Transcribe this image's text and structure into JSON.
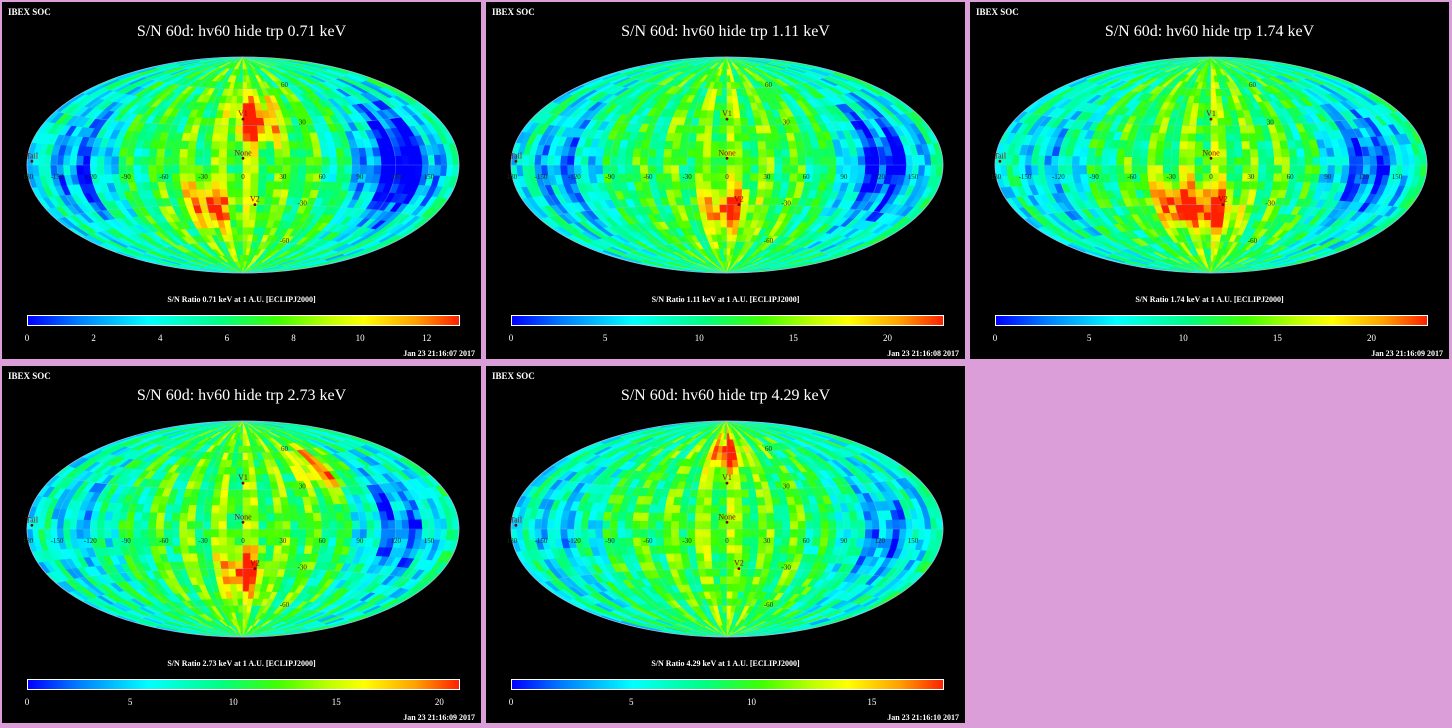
{
  "panels": [
    {
      "header": "IBEX SOC",
      "title": "S/N  60d: hv60 hide trp 0.71 keV",
      "colorbar_label": "S/N Ratio 0.71 keV at 1 A.U. [ECLIPJ2000]",
      "ticks": [
        "0",
        "2",
        "4",
        "6",
        "8",
        "10",
        "12"
      ],
      "max": 13,
      "timestamp": "Jan 23 21:16:07 2017",
      "coolness": 0.75,
      "hot_spots": [
        [
          12,
          36
        ],
        [
          -30,
          -30
        ]
      ]
    },
    {
      "header": "IBEX SOC",
      "title": "S/N  60d: hv60 hide trp 1.11 keV",
      "colorbar_label": "S/N Ratio 1.11 keV at 1 A.U. [ECLIPJ2000]",
      "ticks": [
        "0",
        "5",
        "10",
        "15",
        "20"
      ],
      "max": 23,
      "timestamp": "Jan 23 21:16:08 2017",
      "coolness": 0.6,
      "hot_spots": [
        [
          0,
          -35
        ]
      ]
    },
    {
      "header": "IBEX SOC",
      "title": "S/N  60d: hv60 hide trp 1.74 keV",
      "colorbar_label": "S/N Ratio 1.74 keV at 1 A.U. [ECLIPJ2000]",
      "ticks": [
        "0",
        "5",
        "10",
        "15",
        "20"
      ],
      "max": 23,
      "timestamp": "Jan 23 21:16:09 2017",
      "coolness": 0.5,
      "hot_spots": [
        [
          0,
          -35
        ],
        [
          -30,
          -30
        ]
      ]
    },
    {
      "header": "IBEX SOC",
      "title": "S/N  60d: hv60 hide trp 2.73 keV",
      "colorbar_label": "S/N Ratio 2.73 keV at 1 A.U. [ECLIPJ2000]",
      "ticks": [
        "0",
        "5",
        "10",
        "15",
        "20"
      ],
      "max": 21,
      "timestamp": "Jan 23 21:16:09 2017",
      "coolness": 0.45,
      "hot_spots": [
        [
          75,
          45
        ],
        [
          0,
          -35
        ]
      ]
    },
    {
      "header": "IBEX SOC",
      "title": "S/N  60d: hv60 hide trp 4.29 keV",
      "colorbar_label": "S/N Ratio 4.29 keV at 1 A.U. [ECLIPJ2000]",
      "ticks": [
        "0",
        "5",
        "10",
        "15"
      ],
      "max": 18,
      "timestamp": "Jan 23 21:16:10 2017",
      "coolness": 0.4,
      "hot_spots": [
        [
          0,
          60
        ]
      ]
    }
  ],
  "map_labels": {
    "markers": [
      "V1",
      "None",
      "V2",
      "Tail"
    ],
    "longitude_labels": [
      "60",
      "30",
      "0",
      "-30",
      "-60",
      "-90",
      "-120",
      "-150",
      "180",
      "150",
      "120",
      "90"
    ],
    "latitude_labels": [
      "60",
      "30",
      "-30",
      "-60"
    ]
  },
  "chart_data": [
    {
      "type": "heatmap",
      "title": "S/N  60d: hv60 hide trp 0.71 keV",
      "xlabel": "",
      "ylabel": "",
      "colorbar_label": "S/N Ratio 0.71 keV at 1 A.U. [ECLIPJ2000]",
      "colorbar_range": [
        0,
        13
      ],
      "projection": "Hammer-Aitoff"
    },
    {
      "type": "heatmap",
      "title": "S/N  60d: hv60 hide trp 1.11 keV",
      "xlabel": "",
      "ylabel": "",
      "colorbar_label": "S/N Ratio 1.11 keV at 1 A.U. [ECLIPJ2000]",
      "colorbar_range": [
        0,
        23
      ],
      "projection": "Hammer-Aitoff"
    },
    {
      "type": "heatmap",
      "title": "S/N  60d: hv60 hide trp 1.74 keV",
      "xlabel": "",
      "ylabel": "",
      "colorbar_label": "S/N Ratio 1.74 keV at 1 A.U. [ECLIPJ2000]",
      "colorbar_range": [
        0,
        23
      ],
      "projection": "Hammer-Aitoff"
    },
    {
      "type": "heatmap",
      "title": "S/N  60d: hv60 hide trp 2.73 keV",
      "xlabel": "",
      "ylabel": "",
      "colorbar_label": "S/N Ratio 2.73 keV at 1 A.U. [ECLIPJ2000]",
      "colorbar_range": [
        0,
        21
      ],
      "projection": "Hammer-Aitoff"
    },
    {
      "type": "heatmap",
      "title": "S/N  60d: hv60 hide trp 4.29 keV",
      "xlabel": "",
      "ylabel": "",
      "colorbar_label": "S/N Ratio 4.29 keV at 1 A.U. [ECLIPJ2000]",
      "colorbar_range": [
        0,
        18
      ],
      "projection": "Hammer-Aitoff"
    }
  ]
}
